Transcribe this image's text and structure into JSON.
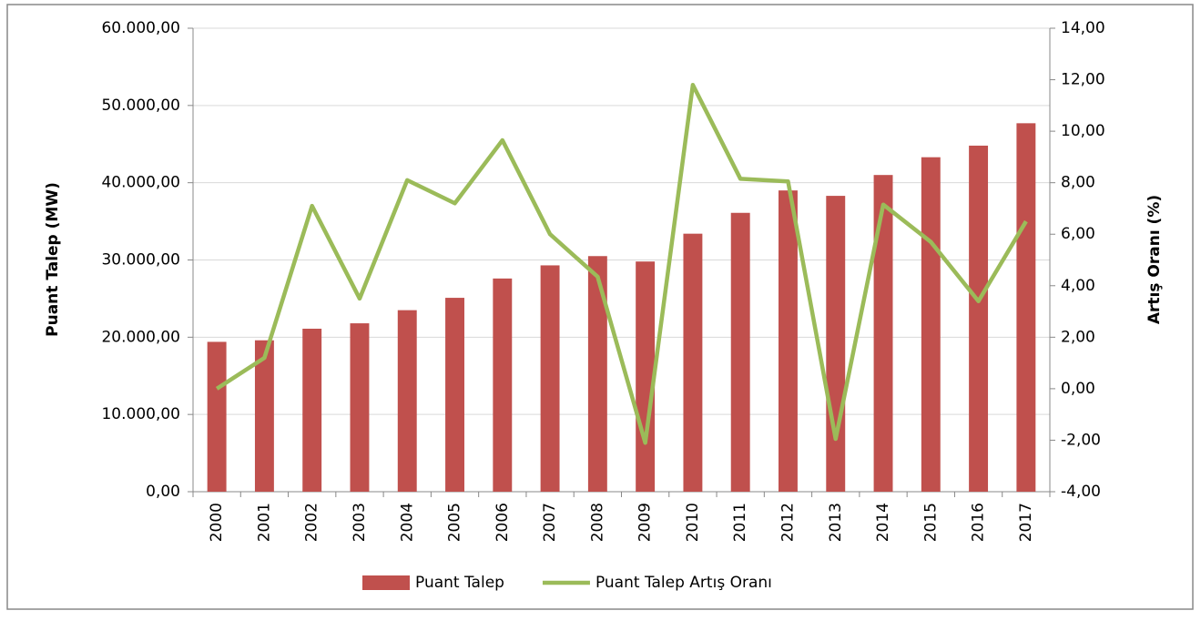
{
  "chart_data": {
    "type": "bar_line",
    "categories": [
      "2000",
      "2001",
      "2002",
      "2003",
      "2004",
      "2005",
      "2006",
      "2007",
      "2008",
      "2009",
      "2010",
      "2011",
      "2012",
      "2013",
      "2014",
      "2015",
      "2016",
      "2017"
    ],
    "series": [
      {
        "name": "Puant Talep",
        "color": "#c0504d",
        "type": "bar",
        "axis": "y",
        "values": [
          19400,
          19600,
          21100,
          21800,
          23500,
          25100,
          27600,
          29300,
          30500,
          29800,
          33400,
          36100,
          39000,
          38300,
          41000,
          43300,
          44800,
          47700
        ]
      },
      {
        "name": "Puant Talep Artış Oranı",
        "color": "#9bbb59",
        "type": "line",
        "axis": "y2",
        "values": [
          0.0,
          1.2,
          7.1,
          3.5,
          8.1,
          7.2,
          9.65,
          6.0,
          4.35,
          -2.1,
          11.8,
          8.15,
          8.05,
          -1.95,
          7.15,
          5.7,
          3.4,
          6.5
        ]
      }
    ],
    "ylabel": "Puant Talep (MW)",
    "y2label": "Artış Oranı (%)",
    "ylim": [
      0,
      60000
    ],
    "yticks": [
      {
        "value": 0,
        "label": "0,00"
      },
      {
        "value": 10000,
        "label": "10.000,00"
      },
      {
        "value": 20000,
        "label": "20.000,00"
      },
      {
        "value": 30000,
        "label": "30.000,00"
      },
      {
        "value": 40000,
        "label": "40.000,00"
      },
      {
        "value": 50000,
        "label": "50.000,00"
      },
      {
        "value": 60000,
        "label": "60.000,00"
      }
    ],
    "y2lim": [
      -4,
      14
    ],
    "y2ticks": [
      {
        "value": -4,
        "label": "-4,00"
      },
      {
        "value": -2,
        "label": "-2,00"
      },
      {
        "value": 0,
        "label": "0,00"
      },
      {
        "value": 2,
        "label": "2,00"
      },
      {
        "value": 4,
        "label": "4,00"
      },
      {
        "value": 6,
        "label": "6,00"
      },
      {
        "value": 8,
        "label": "8,00"
      },
      {
        "value": 10,
        "label": "10,00"
      },
      {
        "value": 12,
        "label": "12,00"
      },
      {
        "value": 14,
        "label": "14,00"
      }
    ],
    "grid": true,
    "legend": "bottom"
  }
}
